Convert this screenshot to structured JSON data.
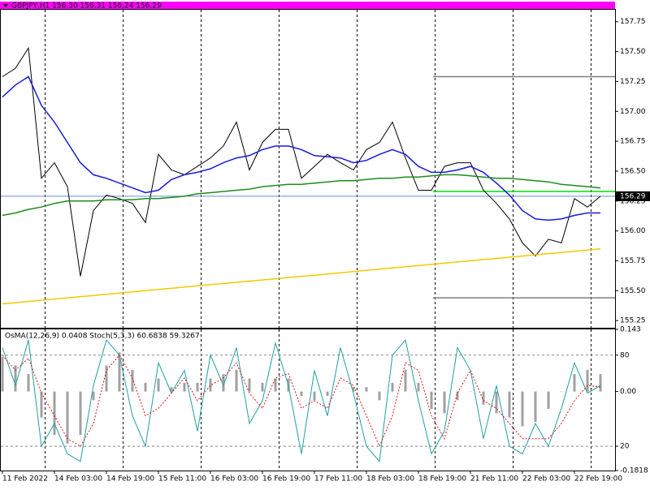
{
  "chart_data": [
    {
      "type": "line",
      "title": "GBPJPY,H1  156.30 156.31 156.24 156.29",
      "categories": [
        "11 Feb 2022",
        null,
        null,
        null,
        "14 Feb 03:00",
        null,
        null,
        null,
        "14 Feb 19:00",
        null,
        null,
        null,
        "15 Feb 11:00",
        null,
        null,
        null,
        "16 Feb 03:00",
        null,
        null,
        null,
        "16 Feb 19:00",
        null,
        null,
        null,
        "17 Feb 11:00",
        null,
        null,
        null,
        "18 Feb 03:00",
        null,
        null,
        null,
        "18 Feb 19:00",
        null,
        null,
        null,
        "21 Feb 11:00",
        null,
        null,
        null,
        "22 Feb 03:00",
        null,
        null,
        null,
        "22 Feb 19:00",
        null,
        null
      ],
      "series": [
        {
          "color": "#000000",
          "values": [
            157.29,
            157.36,
            157.53,
            156.44,
            156.57,
            156.37,
            155.62,
            156.17,
            156.3,
            156.27,
            156.23,
            156.07,
            156.64,
            156.51,
            156.47,
            156.54,
            156.61,
            156.71,
            156.91,
            156.51,
            156.74,
            156.85,
            156.85,
            156.44,
            156.54,
            156.64,
            156.57,
            156.51,
            156.68,
            156.74,
            156.91,
            156.61,
            156.34,
            156.34,
            156.54,
            156.57,
            156.57,
            156.34,
            156.23,
            156.1,
            155.9,
            155.79,
            155.93,
            155.9,
            156.27,
            156.2,
            156.29
          ]
        },
        {
          "color": "#1a1adc",
          "values": [
            157.12,
            157.22,
            157.29,
            157.05,
            156.91,
            156.74,
            156.57,
            156.47,
            156.44,
            156.4,
            156.36,
            156.32,
            156.34,
            156.43,
            156.47,
            156.49,
            156.52,
            156.57,
            156.61,
            156.63,
            156.68,
            156.71,
            156.71,
            156.68,
            156.63,
            156.62,
            156.61,
            156.57,
            156.59,
            156.64,
            156.68,
            156.64,
            156.54,
            156.49,
            156.49,
            156.51,
            156.54,
            156.49,
            156.4,
            156.3,
            156.17,
            156.1,
            156.09,
            156.1,
            156.13,
            156.15,
            156.15
          ]
        },
        {
          "color": "#1e8c1e",
          "values": [
            156.13,
            156.15,
            156.18,
            156.2,
            156.23,
            156.25,
            156.25,
            156.25,
            156.26,
            156.26,
            156.26,
            156.27,
            156.27,
            156.28,
            156.29,
            156.31,
            156.32,
            156.33,
            156.34,
            156.35,
            156.37,
            156.38,
            156.39,
            156.39,
            156.4,
            156.41,
            156.42,
            156.42,
            156.43,
            156.44,
            156.44,
            156.45,
            156.45,
            156.46,
            156.47,
            156.47,
            156.46,
            156.45,
            156.44,
            156.44,
            156.43,
            156.42,
            156.41,
            156.39,
            156.38,
            156.37,
            156.36
          ]
        },
        {
          "color": "#f5c800",
          "values": [
            155.39,
            155.4,
            155.41,
            155.42,
            155.43,
            155.44,
            155.45,
            155.46,
            155.47,
            155.48,
            155.49,
            155.5,
            155.51,
            155.52,
            155.53,
            155.54,
            155.55,
            155.56,
            155.57,
            155.58,
            155.59,
            155.6,
            155.61,
            155.62,
            155.63,
            155.64,
            155.65,
            155.66,
            155.67,
            155.68,
            155.69,
            155.7,
            155.71,
            155.72,
            155.73,
            155.74,
            155.75,
            155.76,
            155.77,
            155.78,
            155.79,
            155.8,
            155.81,
            155.82,
            155.83,
            155.84,
            155.85
          ]
        }
      ],
      "levels": [
        {
          "value": 157.29,
          "color": "#808080"
        },
        {
          "value": 156.33,
          "color": "#00e000"
        },
        {
          "value": 155.44,
          "color": "#808080"
        }
      ],
      "last_price": {
        "value": 156.29,
        "label": "156.29",
        "color": "#6a8cd8"
      },
      "ylim": [
        155.19,
        157.85
      ],
      "yticks": [
        155.25,
        {
          "value": 155.5,
          "label": "155.50"
        },
        155.75,
        {
          "value": 156,
          "label": "156.00"
        },
        156.25,
        {
          "value": 156.5,
          "label": "156.50"
        },
        156.75,
        {
          "value": 157,
          "label": "157.00"
        },
        157.25,
        {
          "value": 157.5,
          "label": "157.50"
        },
        157.75
      ]
    },
    {
      "type": "bar",
      "title": "OsMA(12,26,9) 0.0408  Stoch(5,3,3) 60.6838 59.3267",
      "series": [
        {
          "color": "#a0a0a0",
          "values": [
            0.08,
            0.06,
            0.04,
            -0.06,
            -0.1,
            -0.12,
            -0.1,
            -0.02,
            0.06,
            0.09,
            0.05,
            0.02,
            0.03,
            0.01,
            0.02,
            0.02,
            0.03,
            0.04,
            0.05,
            0.03,
            0.02,
            0.03,
            0.03,
            -0.01,
            -0.02,
            -0.01,
            0,
            0.01,
            0.01,
            -0.02,
            0.02,
            0.05,
            0.02,
            -0.04,
            -0.05,
            -0.02,
            0,
            -0.03,
            -0.05,
            -0.06,
            -0.08,
            -0.07,
            -0.04,
            0,
            0.04,
            0.05,
            0.04
          ]
        },
        {
          "color": "#20a0a0",
          "axis": "y2",
          "values": [
            85,
            60,
            90,
            20,
            35,
            15,
            10,
            60,
            90,
            80,
            40,
            20,
            75,
            55,
            70,
            30,
            80,
            60,
            85,
            35,
            50,
            88,
            60,
            15,
            70,
            40,
            85,
            55,
            20,
            10,
            80,
            90,
            50,
            15,
            30,
            85,
            70,
            25,
            60,
            20,
            15,
            35,
            20,
            45,
            75,
            55,
            60
          ]
        },
        {
          "color": "#e01010",
          "axis": "y2",
          "dashed": true,
          "values": [
            80,
            70,
            78,
            55,
            40,
            25,
            20,
            35,
            70,
            80,
            65,
            40,
            45,
            55,
            65,
            50,
            60,
            65,
            75,
            55,
            45,
            65,
            68,
            45,
            50,
            45,
            65,
            60,
            40,
            20,
            40,
            75,
            70,
            40,
            25,
            55,
            70,
            50,
            45,
            35,
            25,
            25,
            25,
            35,
            50,
            60,
            59
          ]
        }
      ],
      "ylim": [
        -0.1818,
        0.143
      ],
      "yticks": [
        0.143,
        {
          "value": 0,
          "label": "0.00"
        },
        -0.1818
      ],
      "y2lim": [
        4,
        97
      ],
      "y2ticks": [
        80,
        20
      ]
    }
  ]
}
